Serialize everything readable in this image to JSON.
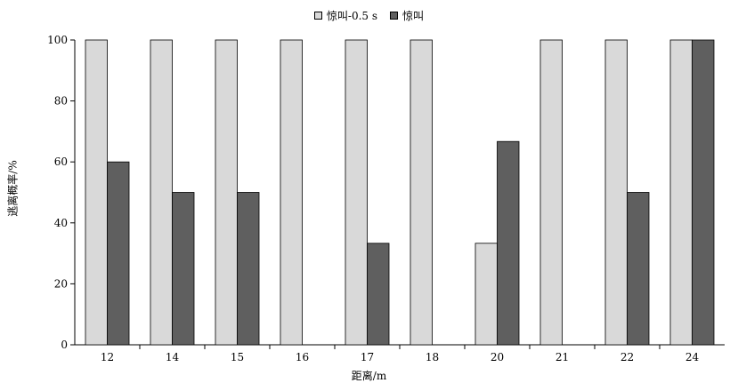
{
  "chart_data": {
    "type": "bar",
    "title": "",
    "xlabel": "距离/m",
    "ylabel": "逃离概率/%",
    "ylim": [
      0,
      100
    ],
    "yticks": [
      "0",
      "20",
      "40",
      "60",
      "80",
      "100"
    ],
    "grid": false,
    "legend_position": "top-center",
    "categories": [
      "12",
      "14",
      "15",
      "16",
      "17",
      "18",
      "20",
      "21",
      "22",
      "24"
    ],
    "series": [
      {
        "name": "惊叫-0.5 s",
        "color": "#d9d9d9",
        "values": [
          100,
          100,
          100,
          100,
          100,
          100,
          33.3,
          100,
          100,
          100
        ]
      },
      {
        "name": "惊叫",
        "color": "#5f5f5f",
        "values": [
          60,
          50,
          50,
          0,
          33.3,
          0,
          66.7,
          0,
          50,
          100
        ]
      }
    ]
  }
}
